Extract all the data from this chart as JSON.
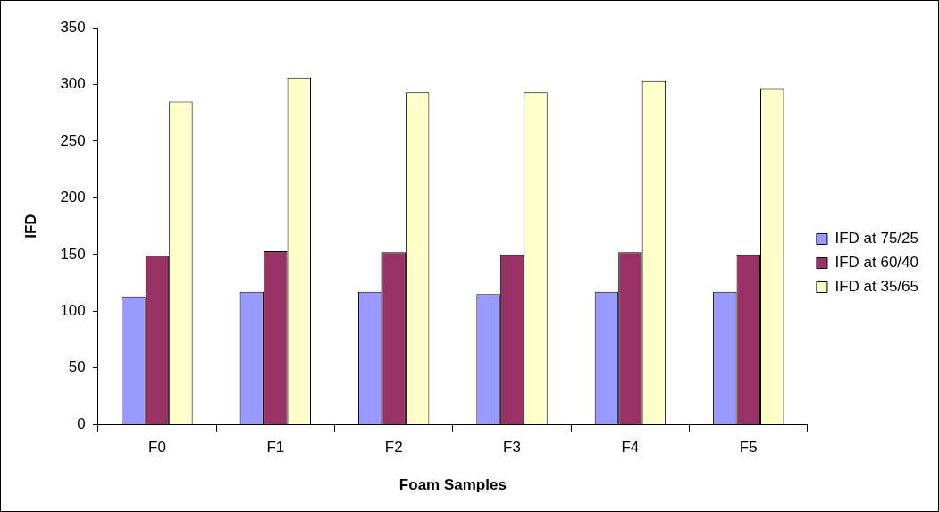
{
  "chart_data": {
    "type": "bar",
    "xlabel": "Foam Samples",
    "ylabel": "IFD",
    "categories": [
      "F0",
      "F1",
      "F2",
      "F3",
      "F4",
      "F5"
    ],
    "series": [
      {
        "name": "IFD at 75/25",
        "color": "#9999ff",
        "values": [
          113,
          117,
          117,
          115,
          117,
          117
        ]
      },
      {
        "name": "IFD at 60/40",
        "color": "#993366",
        "values": [
          149,
          153,
          152,
          150,
          152,
          150
        ]
      },
      {
        "name": "IFD at 35/65",
        "color": "#ffffcc",
        "values": [
          285,
          306,
          293,
          293,
          303,
          296
        ]
      }
    ],
    "ylim": [
      0,
      350
    ],
    "yticks": [
      0,
      50,
      100,
      150,
      200,
      250,
      300,
      350
    ],
    "grid": false,
    "legend": "right"
  }
}
